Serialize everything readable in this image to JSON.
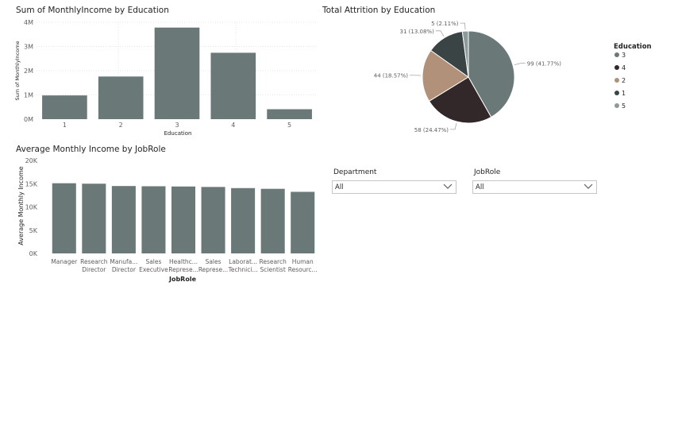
{
  "chart_data": [
    {
      "id": "income_by_education",
      "type": "bar",
      "title": "Sum of MonthlyIncome by Education",
      "xlabel": "Education",
      "ylabel": "Sum of MonthlyIncome",
      "categories": [
        "1",
        "2",
        "3",
        "4",
        "5"
      ],
      "values": [
        980000,
        1760000,
        3780000,
        2740000,
        410000
      ],
      "ylim": [
        0,
        4000000
      ],
      "yticks": [
        0,
        1000000,
        2000000,
        3000000,
        4000000
      ],
      "ytick_labels": [
        "0M",
        "1M",
        "2M",
        "3M",
        "4M"
      ],
      "grid": true,
      "color": "#6b7878"
    },
    {
      "id": "attrition_by_education",
      "type": "pie",
      "title": "Total Attrition by Education",
      "legend_title": "Education",
      "legend_position": "right",
      "slices": [
        {
          "label": "3",
          "value": 99,
          "percent": "41.77%",
          "display": "99 (41.77%)",
          "color": "#6b7878"
        },
        {
          "label": "4",
          "value": 58,
          "percent": "24.47%",
          "display": "58 (24.47%)",
          "color": "#332829"
        },
        {
          "label": "2",
          "value": 44,
          "percent": "18.57%",
          "display": "44 (18.57%)",
          "color": "#b19179"
        },
        {
          "label": "1",
          "value": 31,
          "percent": "13.08%",
          "display": "31 (13.08%)",
          "color": "#3b4444"
        },
        {
          "label": "5",
          "value": 5,
          "percent": "2.11%",
          "display": "5 (2.11%)",
          "color": "#8c9a9b"
        }
      ]
    },
    {
      "id": "income_by_jobrole",
      "type": "bar",
      "title": "Average Monthly Income by JobRole",
      "xlabel": "JobRole",
      "ylabel": "Average Monthly Income",
      "categories": [
        [
          "Manager"
        ],
        [
          "Research",
          "Director"
        ],
        [
          "Manufa...",
          "Director"
        ],
        [
          "Sales",
          "Executive"
        ],
        [
          "Healthc...",
          "Represe..."
        ],
        [
          "Sales",
          "Represe..."
        ],
        [
          "Laborat...",
          "Technici..."
        ],
        [
          "Research",
          "Scientist"
        ],
        [
          "Human",
          "Resourc..."
        ]
      ],
      "values": [
        15100,
        15000,
        14500,
        14450,
        14400,
        14300,
        14050,
        13900,
        13250
      ],
      "ylim": [
        0,
        20000
      ],
      "yticks": [
        0,
        5000,
        10000,
        15000,
        20000
      ],
      "ytick_labels": [
        "0K",
        "5K",
        "10K",
        "15K",
        "20K"
      ],
      "grid": false,
      "color": "#6b7878"
    }
  ],
  "slicers": {
    "department": {
      "label": "Department",
      "value": "All"
    },
    "jobrole": {
      "label": "JobRole",
      "value": "All"
    }
  }
}
